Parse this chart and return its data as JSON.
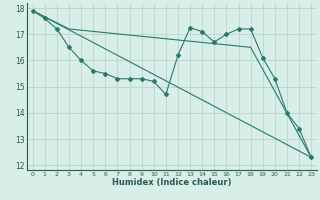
{
  "xlabel": "Humidex (Indice chaleur)",
  "bg_color": "#d8eee8",
  "grid_color": "#c0d8d0",
  "line_color": "#2a7a6a",
  "xlim": [
    -0.5,
    23.5
  ],
  "ylim": [
    11.8,
    18.2
  ],
  "xticks": [
    0,
    1,
    2,
    3,
    4,
    5,
    6,
    7,
    8,
    9,
    10,
    11,
    12,
    13,
    14,
    15,
    16,
    17,
    18,
    19,
    20,
    21,
    22,
    23
  ],
  "yticks": [
    12,
    13,
    14,
    15,
    16,
    17,
    18
  ],
  "line1_x": [
    0,
    1,
    2,
    3,
    4,
    5,
    6,
    7,
    8,
    9,
    10,
    11,
    12,
    13,
    14,
    15,
    16,
    17,
    18,
    19,
    20,
    21,
    22,
    23
  ],
  "line1_y": [
    17.9,
    17.6,
    17.2,
    16.5,
    16.0,
    15.6,
    15.5,
    15.3,
    15.3,
    15.3,
    15.2,
    14.7,
    16.2,
    17.25,
    17.1,
    16.7,
    17.0,
    17.2,
    17.2,
    16.1,
    15.3,
    14.0,
    13.4,
    12.3
  ],
  "line2_x": [
    0,
    23
  ],
  "line2_y": [
    17.9,
    12.3
  ],
  "line3_x": [
    0,
    3,
    18,
    23
  ],
  "line3_y": [
    17.9,
    17.2,
    16.5,
    12.3
  ]
}
